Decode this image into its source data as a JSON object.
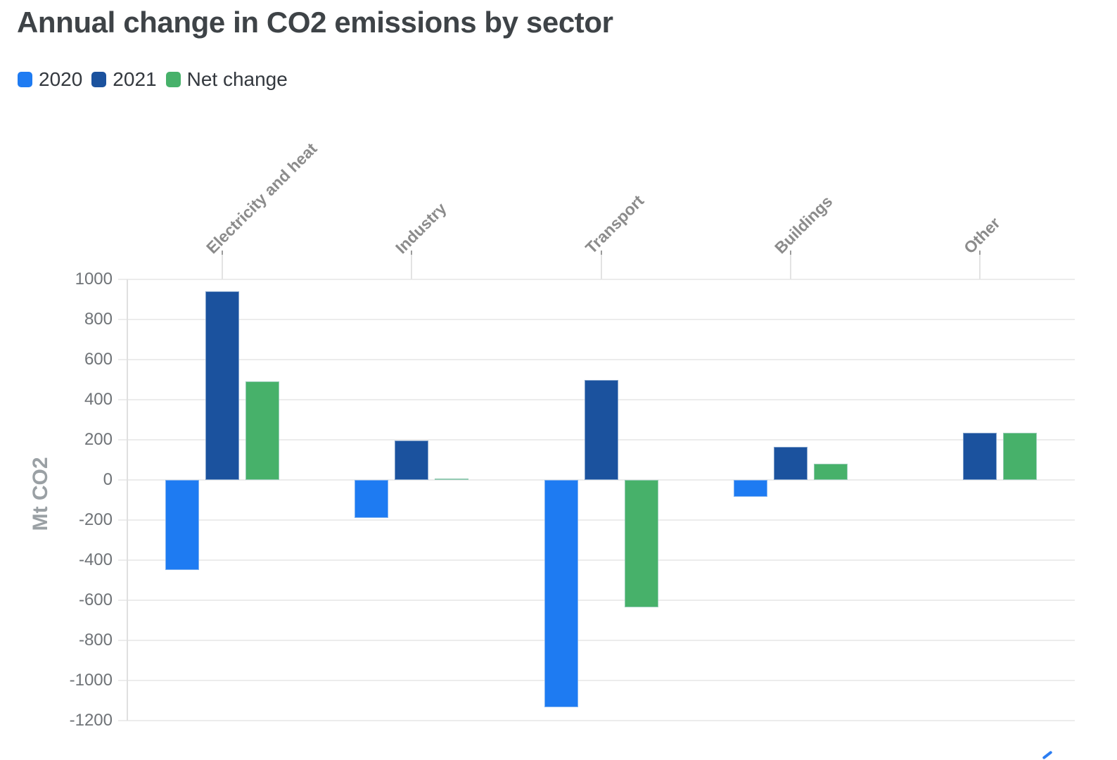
{
  "title": "Annual change in CO2 emissions by sector",
  "legend": {
    "items": [
      {
        "label": "2020",
        "color": "#1e7bf2"
      },
      {
        "label": "2021",
        "color": "#1b529e"
      },
      {
        "label": "Net change",
        "color": "#47b16a"
      }
    ]
  },
  "y_axis": {
    "label": "Mt CO2",
    "ticks": [
      1000,
      800,
      600,
      400,
      200,
      0,
      -200,
      -400,
      -600,
      -800,
      -1000,
      -1200
    ]
  },
  "chart_data": {
    "type": "bar",
    "title": "Annual change in CO2 emissions by sector",
    "xlabel": "",
    "ylabel": "Mt CO2",
    "ylim": [
      -1200,
      1000
    ],
    "ytick_step": 200,
    "grid": true,
    "legend_position": "top-left",
    "categories": [
      "Electricity and heat",
      "Industry",
      "Transport",
      "Buildings",
      "Other"
    ],
    "series": [
      {
        "name": "2020",
        "color": "#1e7bf2",
        "values": [
          -450,
          -190,
          -1135,
          -85,
          0
        ]
      },
      {
        "name": "2021",
        "color": "#1b529e",
        "values": [
          940,
          195,
          500,
          165,
          235
        ]
      },
      {
        "name": "Net change",
        "color": "#47b16a",
        "values": [
          490,
          5,
          -635,
          80,
          235
        ]
      }
    ]
  },
  "colors": {
    "series_2020": "#1e7bf2",
    "series_2021": "#1b529e",
    "series_net_change": "#47b16a",
    "grid": "#ececec",
    "title_text": "#3e4347",
    "category_label": "#8b8b8b",
    "tick_label": "#6f7377",
    "axis_unit_label": "#9aa0a4",
    "logo_blue": "#2c7ef2"
  }
}
